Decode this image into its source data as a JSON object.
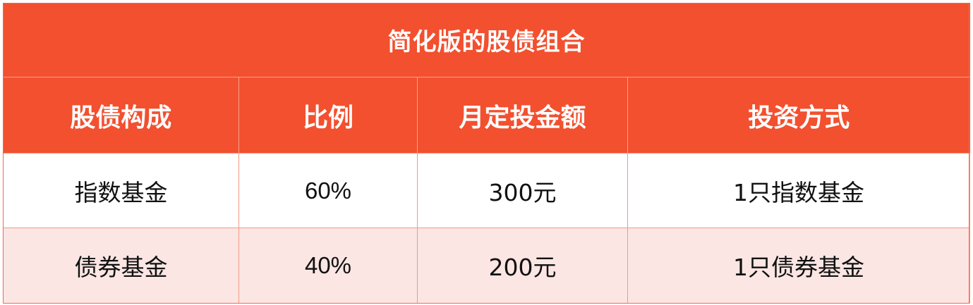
{
  "table": {
    "title": "简化版的股债组合",
    "headers": [
      "股债构成",
      "比例",
      "月定投金额",
      "投资方式"
    ],
    "rows": [
      [
        "指数基金",
        "60%",
        "300元",
        "1只指数基金"
      ],
      [
        "债券基金",
        "40%",
        "200元",
        "1只债券基金"
      ]
    ]
  },
  "colors": {
    "header_bg": "#f2502f",
    "header_text": "#ffffff",
    "row_even_bg": "#fbe6e4",
    "row_odd_bg": "#ffffff",
    "grid_line": "#f29a86"
  }
}
